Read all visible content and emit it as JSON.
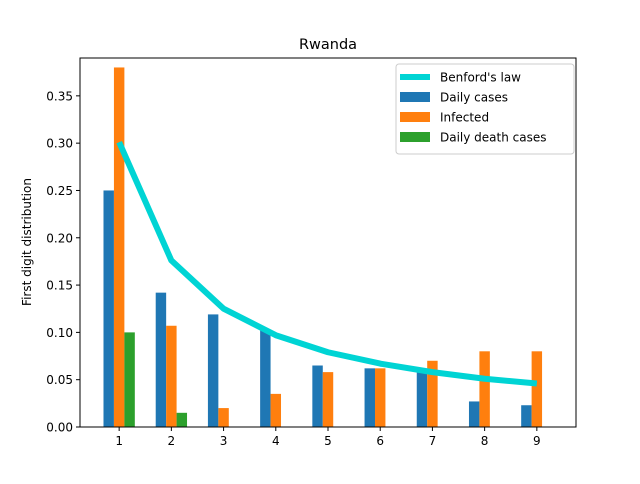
{
  "chart_data": {
    "type": "bar",
    "title": "Rwanda",
    "xlabel": "",
    "ylabel": "First digit distribution",
    "categories": [
      "1",
      "2",
      "3",
      "4",
      "5",
      "6",
      "7",
      "8",
      "9"
    ],
    "ylim": [
      0,
      0.39
    ],
    "yticks": [
      0.0,
      0.05,
      0.1,
      0.15,
      0.2,
      0.25,
      0.3,
      0.35
    ],
    "ytick_labels": [
      "0.00",
      "0.05",
      "0.10",
      "0.15",
      "0.20",
      "0.25",
      "0.30",
      "0.35"
    ],
    "grid": false,
    "legend_position": "top-right",
    "series": [
      {
        "name": "Daily cases",
        "kind": "bar",
        "color": "#1f77b4",
        "values": [
          0.25,
          0.142,
          0.119,
          0.102,
          0.065,
          0.062,
          0.06,
          0.027,
          0.023
        ]
      },
      {
        "name": "Infected",
        "kind": "bar",
        "color": "#ff7f0e",
        "values": [
          0.38,
          0.107,
          0.02,
          0.035,
          0.058,
          0.062,
          0.07,
          0.08,
          0.08
        ]
      },
      {
        "name": "Daily death cases",
        "kind": "bar",
        "color": "#2ca02c",
        "values": [
          0.1,
          0.015,
          0,
          0,
          0,
          0,
          0,
          0,
          0
        ]
      },
      {
        "name": "Benford's law",
        "kind": "line",
        "color": "#00d4d4",
        "values": [
          0.301,
          0.176,
          0.125,
          0.097,
          0.079,
          0.067,
          0.058,
          0.051,
          0.046
        ]
      }
    ],
    "legend_order": [
      "Benford's law",
      "Daily cases",
      "Infected",
      "Daily death cases"
    ]
  }
}
